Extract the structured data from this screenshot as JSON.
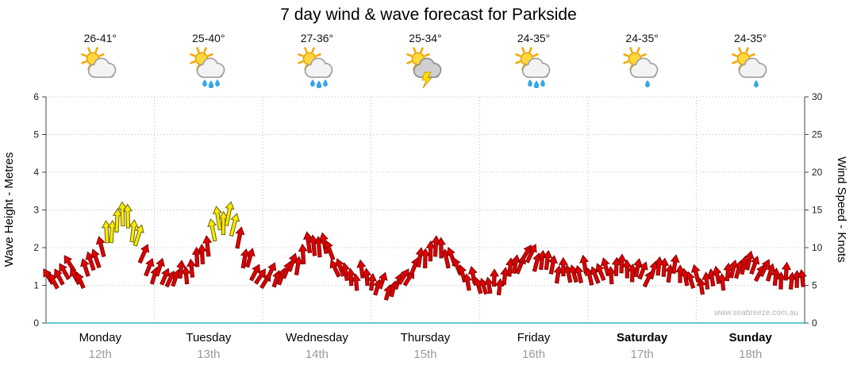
{
  "title": "7 day wind & wave forecast for Parkside",
  "watermark": "www.seabreeze.com.au",
  "days": [
    {
      "name": "Monday",
      "date": "12th",
      "temp_range": "26-41°",
      "icon": "partly-cloudy",
      "bold": false
    },
    {
      "name": "Tuesday",
      "date": "13th",
      "temp_range": "25-40°",
      "icon": "showers",
      "bold": false
    },
    {
      "name": "Wednesday",
      "date": "14th",
      "temp_range": "27-36°",
      "icon": "showers",
      "bold": false
    },
    {
      "name": "Thursday",
      "date": "15th",
      "temp_range": "25-34°",
      "icon": "storm",
      "bold": false
    },
    {
      "name": "Friday",
      "date": "16th",
      "temp_range": "24-35°",
      "icon": "showers",
      "bold": false
    },
    {
      "name": "Saturday",
      "date": "17th",
      "temp_range": "24-35°",
      "icon": "light-showers",
      "bold": true
    },
    {
      "name": "Sunday",
      "date": "18th",
      "temp_range": "24-35°",
      "icon": "light-showers",
      "bold": true
    }
  ],
  "chart_data": {
    "type": "wind-arrow-series",
    "title": "7 day wind & wave forecast for Parkside",
    "categories": [
      "Monday 12th",
      "Tuesday 13th",
      "Wednesday 14th",
      "Thursday 15th",
      "Friday 16th",
      "Saturday 17th",
      "Sunday 18th"
    ],
    "y_left": {
      "label": "Wave Height - Metres",
      "min": 0,
      "max": 6,
      "ticks": [
        0,
        1,
        2,
        3,
        4,
        5,
        6
      ]
    },
    "y_right": {
      "label": "Wind Speed - Knots",
      "min": 0,
      "max": 30,
      "ticks": [
        0,
        5,
        10,
        15,
        20,
        25,
        30
      ]
    },
    "points_per_day": 8,
    "strong_wind_threshold_knots": 11.5,
    "series": [
      {
        "name": "Wind Speed",
        "unit": "knots",
        "values": [
          5.5,
          7.5,
          6.0,
          8.5,
          11.5,
          14.5,
          13.0,
          7.5,
          6.5,
          6.0,
          7.0,
          9.0,
          13.0,
          14.5,
          10.0,
          6.5,
          6.0,
          6.5,
          8.0,
          10.5,
          10.5,
          7.5,
          6.0,
          6.5,
          5.0,
          4.5,
          6.0,
          8.0,
          10.0,
          9.5,
          7.0,
          5.5,
          5.0,
          5.5,
          7.5,
          9.0,
          8.5,
          7.5,
          6.5,
          7.0,
          6.5,
          7.0,
          7.5,
          7.0,
          6.5,
          7.5,
          7.0,
          6.0,
          5.5,
          6.0,
          6.5,
          8.0,
          7.5,
          6.5,
          6.0,
          6.0
        ],
        "directions_deg": [
          -35,
          -25,
          -30,
          -15,
          -5,
          0,
          10,
          20,
          25,
          15,
          0,
          -10,
          -5,
          5,
          15,
          25,
          30,
          20,
          10,
          -5,
          -15,
          -20,
          -10,
          0,
          10,
          20,
          30,
          15,
          0,
          -10,
          -20,
          -15,
          -10,
          0,
          15,
          25,
          15,
          5,
          -5,
          -15,
          -20,
          -10,
          0,
          10,
          20,
          10,
          0,
          -10,
          -15,
          -5,
          5,
          15,
          25,
          15,
          5,
          -5
        ]
      }
    ],
    "colors": {
      "arrow": "#e00000",
      "arrow_outline": "#7d0000",
      "strong_arrow": "#ffe900",
      "strong_arrow_outline": "#666600",
      "axis_bottom": "#4fc3c7",
      "grid": "#bcbcbc"
    },
    "grid": "dotted",
    "legend": "none"
  }
}
